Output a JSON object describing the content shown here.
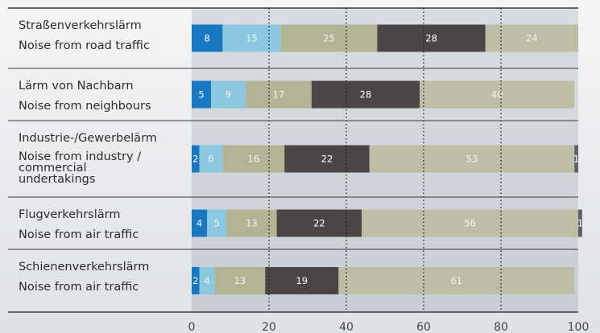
{
  "chart_data": {
    "type": "bar",
    "orientation": "horizontal",
    "stacked": true,
    "categories": [
      {
        "label_de": "Straßenverkehrslärm",
        "label_en": [
          "Noise from road traffic"
        ]
      },
      {
        "label_de": "Lärm von Nachbarn",
        "label_en": [
          "Noise from neighbours"
        ]
      },
      {
        "label_de": "Industrie-/Gewerbelärm",
        "label_en": [
          "Noise from industry /",
          "commercial",
          "undertakings"
        ]
      },
      {
        "label_de": "Flugverkehrslärm",
        "label_en": [
          "Noise from air traffic"
        ]
      },
      {
        "label_de": "Schienenverkehrslärm",
        "label_en": [
          "Noise from air traffic"
        ]
      }
    ],
    "series": [
      {
        "color": "#1a78c2",
        "values": [
          8,
          5,
          2,
          4,
          2
        ]
      },
      {
        "color": "#8cc8df",
        "values": [
          15,
          9,
          6,
          5,
          4
        ]
      },
      {
        "color": "#b3b395",
        "values": [
          25,
          17,
          16,
          13,
          13
        ]
      },
      {
        "color": "#4b4545",
        "values": [
          28,
          28,
          22,
          22,
          19
        ]
      },
      {
        "color": "#bdbea5",
        "values": [
          24,
          40,
          53,
          56,
          61
        ]
      },
      {
        "color": "#5e5e68",
        "values": [
          0,
          0,
          1,
          1,
          0
        ]
      }
    ],
    "xlim": [
      0,
      100
    ],
    "xticks": [
      0,
      20,
      40,
      60,
      80,
      100
    ],
    "gridlines": [
      20,
      40,
      60,
      80
    ],
    "grid_style": "dotted vertical",
    "legend": "none"
  }
}
